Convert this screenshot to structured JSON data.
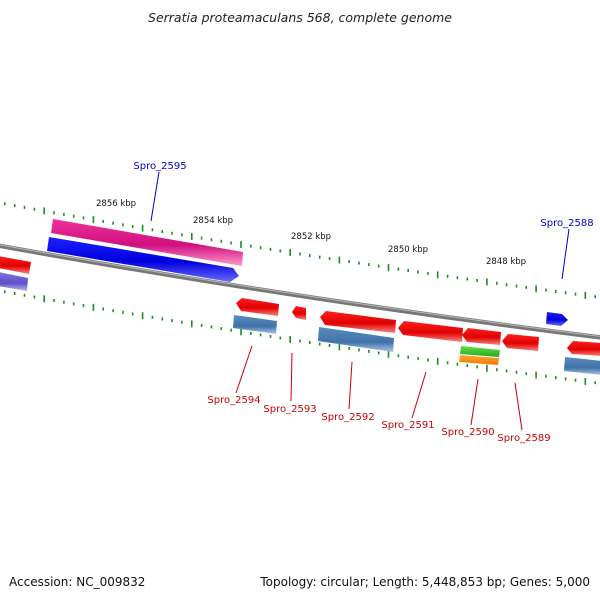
{
  "title": "Serratia proteamaculans 568, complete genome",
  "footer": {
    "accession": "Accession: NC_009832",
    "summary": "Topology: circular; Length: 5,448,853 bp; Genes: 5,000"
  },
  "colors": {
    "backbone": "#808080",
    "tick": "#1e8c1e",
    "forward_label": "#0000cc",
    "reverse_label": "#cc0000",
    "red_gene": "#ee0000",
    "blue_gene": "#0000ee",
    "pink_gene": "#e8198c",
    "steel_feature": "#4a7fb5",
    "purple_feature": "#7060d0",
    "green_feature": "#33cc33",
    "orange_feature": "#ff8800"
  },
  "scale_labels": [
    "2856 kbp",
    "2854 kbp",
    "2852 kbp",
    "2850 kbp",
    "2848 kbp"
  ],
  "forward_genes": [
    {
      "name": "Spro_2595",
      "color": "blue"
    },
    {
      "name": "Spro_2588",
      "color": "blue"
    }
  ],
  "reverse_genes": [
    {
      "name": "Spro_2594",
      "color": "red"
    },
    {
      "name": "Spro_2593",
      "color": "red"
    },
    {
      "name": "Spro_2592",
      "color": "red"
    },
    {
      "name": "Spro_2591",
      "color": "red"
    },
    {
      "name": "Spro_2590",
      "color": "red"
    },
    {
      "name": "Spro_2589",
      "color": "red"
    }
  ]
}
